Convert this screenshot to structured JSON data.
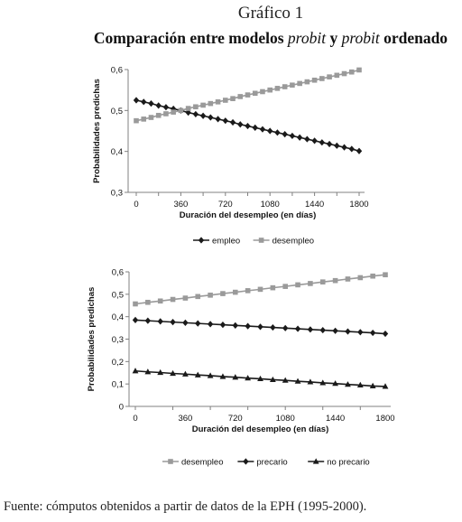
{
  "header": {
    "figure_number": "Gráfico 1",
    "title_part1": "Comparación entre modelos ",
    "title_italic1": "probit",
    "title_part2": " y ",
    "title_italic2": "probit",
    "title_part3": " ordenado"
  },
  "colors": {
    "empleo": "#1a1a1a",
    "desempleo": "#9a9a9a",
    "precario": "#1a1a1a",
    "no_precario": "#1a1a1a",
    "axis": "#808080"
  },
  "chart_data": [
    {
      "type": "line",
      "xlabel": "Duración del desempleo (en días)",
      "ylabel": "Probabilidades predichas",
      "ylim": [
        0.3,
        0.6
      ],
      "yticks": [
        "0,3",
        "0,4",
        "0,5",
        "0,6"
      ],
      "xticks": [
        "0",
        "360",
        "720",
        "1080",
        "1440",
        "1800"
      ],
      "x": [
        0,
        60,
        120,
        180,
        240,
        300,
        360,
        420,
        480,
        540,
        600,
        660,
        720,
        780,
        840,
        900,
        960,
        1020,
        1080,
        1140,
        1200,
        1260,
        1320,
        1380,
        1440,
        1500,
        1560,
        1620,
        1680,
        1740,
        1800
      ],
      "grid": false,
      "legend_position": "bottom",
      "series": [
        {
          "name": "empleo",
          "marker": "diamond",
          "values": [
            0.525,
            0.521,
            0.517,
            0.512,
            0.508,
            0.504,
            0.5,
            0.495,
            0.491,
            0.487,
            0.483,
            0.479,
            0.475,
            0.471,
            0.466,
            0.462,
            0.458,
            0.454,
            0.45,
            0.446,
            0.442,
            0.438,
            0.434,
            0.43,
            0.426,
            0.422,
            0.418,
            0.414,
            0.41,
            0.406,
            0.401
          ]
        },
        {
          "name": "desempleo",
          "marker": "square",
          "values": [
            0.475,
            0.479,
            0.483,
            0.488,
            0.492,
            0.496,
            0.5,
            0.505,
            0.509,
            0.513,
            0.517,
            0.521,
            0.525,
            0.529,
            0.534,
            0.538,
            0.542,
            0.546,
            0.55,
            0.554,
            0.558,
            0.562,
            0.566,
            0.57,
            0.574,
            0.578,
            0.582,
            0.586,
            0.59,
            0.594,
            0.599
          ]
        }
      ]
    },
    {
      "type": "line",
      "xlabel": "Duración del desempleo (en días)",
      "ylabel": "Probabilidades predichas",
      "ylim": [
        0,
        0.6
      ],
      "yticks": [
        "0",
        "0,1",
        "0,2",
        "0,3",
        "0,4",
        "0,5",
        "0,6"
      ],
      "xticks": [
        "0",
        "360",
        "720",
        "1080",
        "1440",
        "1800"
      ],
      "x": [
        0,
        90,
        180,
        270,
        360,
        450,
        540,
        630,
        720,
        810,
        900,
        990,
        1080,
        1170,
        1260,
        1350,
        1440,
        1530,
        1620,
        1710,
        1800
      ],
      "grid": false,
      "legend_position": "bottom",
      "series": [
        {
          "name": "desempleo",
          "marker": "square",
          "values": [
            0.457,
            0.464,
            0.47,
            0.477,
            0.483,
            0.49,
            0.496,
            0.503,
            0.509,
            0.516,
            0.522,
            0.529,
            0.535,
            0.542,
            0.548,
            0.555,
            0.561,
            0.568,
            0.574,
            0.581,
            0.587
          ]
        },
        {
          "name": "precario",
          "marker": "diamond",
          "values": [
            0.385,
            0.382,
            0.379,
            0.376,
            0.373,
            0.37,
            0.367,
            0.364,
            0.361,
            0.358,
            0.355,
            0.352,
            0.349,
            0.346,
            0.343,
            0.34,
            0.337,
            0.334,
            0.331,
            0.328,
            0.324
          ]
        },
        {
          "name": "no precario",
          "marker": "triangle",
          "values": [
            0.158,
            0.154,
            0.151,
            0.147,
            0.144,
            0.14,
            0.137,
            0.133,
            0.13,
            0.126,
            0.123,
            0.119,
            0.116,
            0.112,
            0.109,
            0.105,
            0.102,
            0.098,
            0.095,
            0.091,
            0.089
          ]
        }
      ]
    }
  ],
  "footer": {
    "source": "Fuente: cómputos obtenidos a partir de datos de la EPH (1995-2000)."
  }
}
